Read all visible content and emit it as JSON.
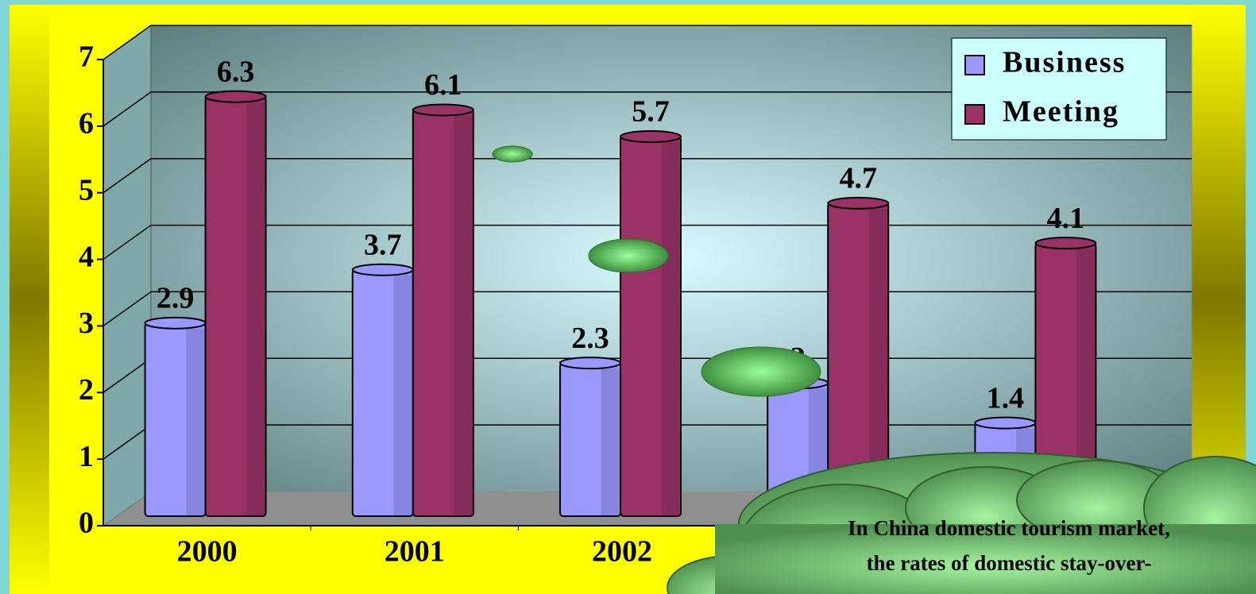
{
  "chart_data": {
    "type": "bar",
    "categories": [
      "2000",
      "2001",
      "2002",
      null,
      null
    ],
    "series": [
      {
        "name": "Business",
        "color": "#9999ff",
        "values": [
          2.9,
          3.7,
          2.3,
          2,
          1.4
        ],
        "value_labels": [
          "2.9",
          "3.7",
          "2.3",
          "2",
          "1.4"
        ]
      },
      {
        "name": "Meeting",
        "color": "#993366",
        "values": [
          6.3,
          6.1,
          5.7,
          4.7,
          4.1
        ],
        "value_labels": [
          "6.3",
          "6.1",
          "5.7",
          "4.7",
          "4.1"
        ]
      }
    ],
    "ylim": [
      0,
      7
    ],
    "yticks": [
      0,
      1,
      2,
      3,
      4,
      5,
      6,
      7
    ],
    "grid": true,
    "legend": "top-right",
    "annotation": [
      "In China domestic tourism market,",
      "the rates of domestic stay-over-"
    ]
  }
}
